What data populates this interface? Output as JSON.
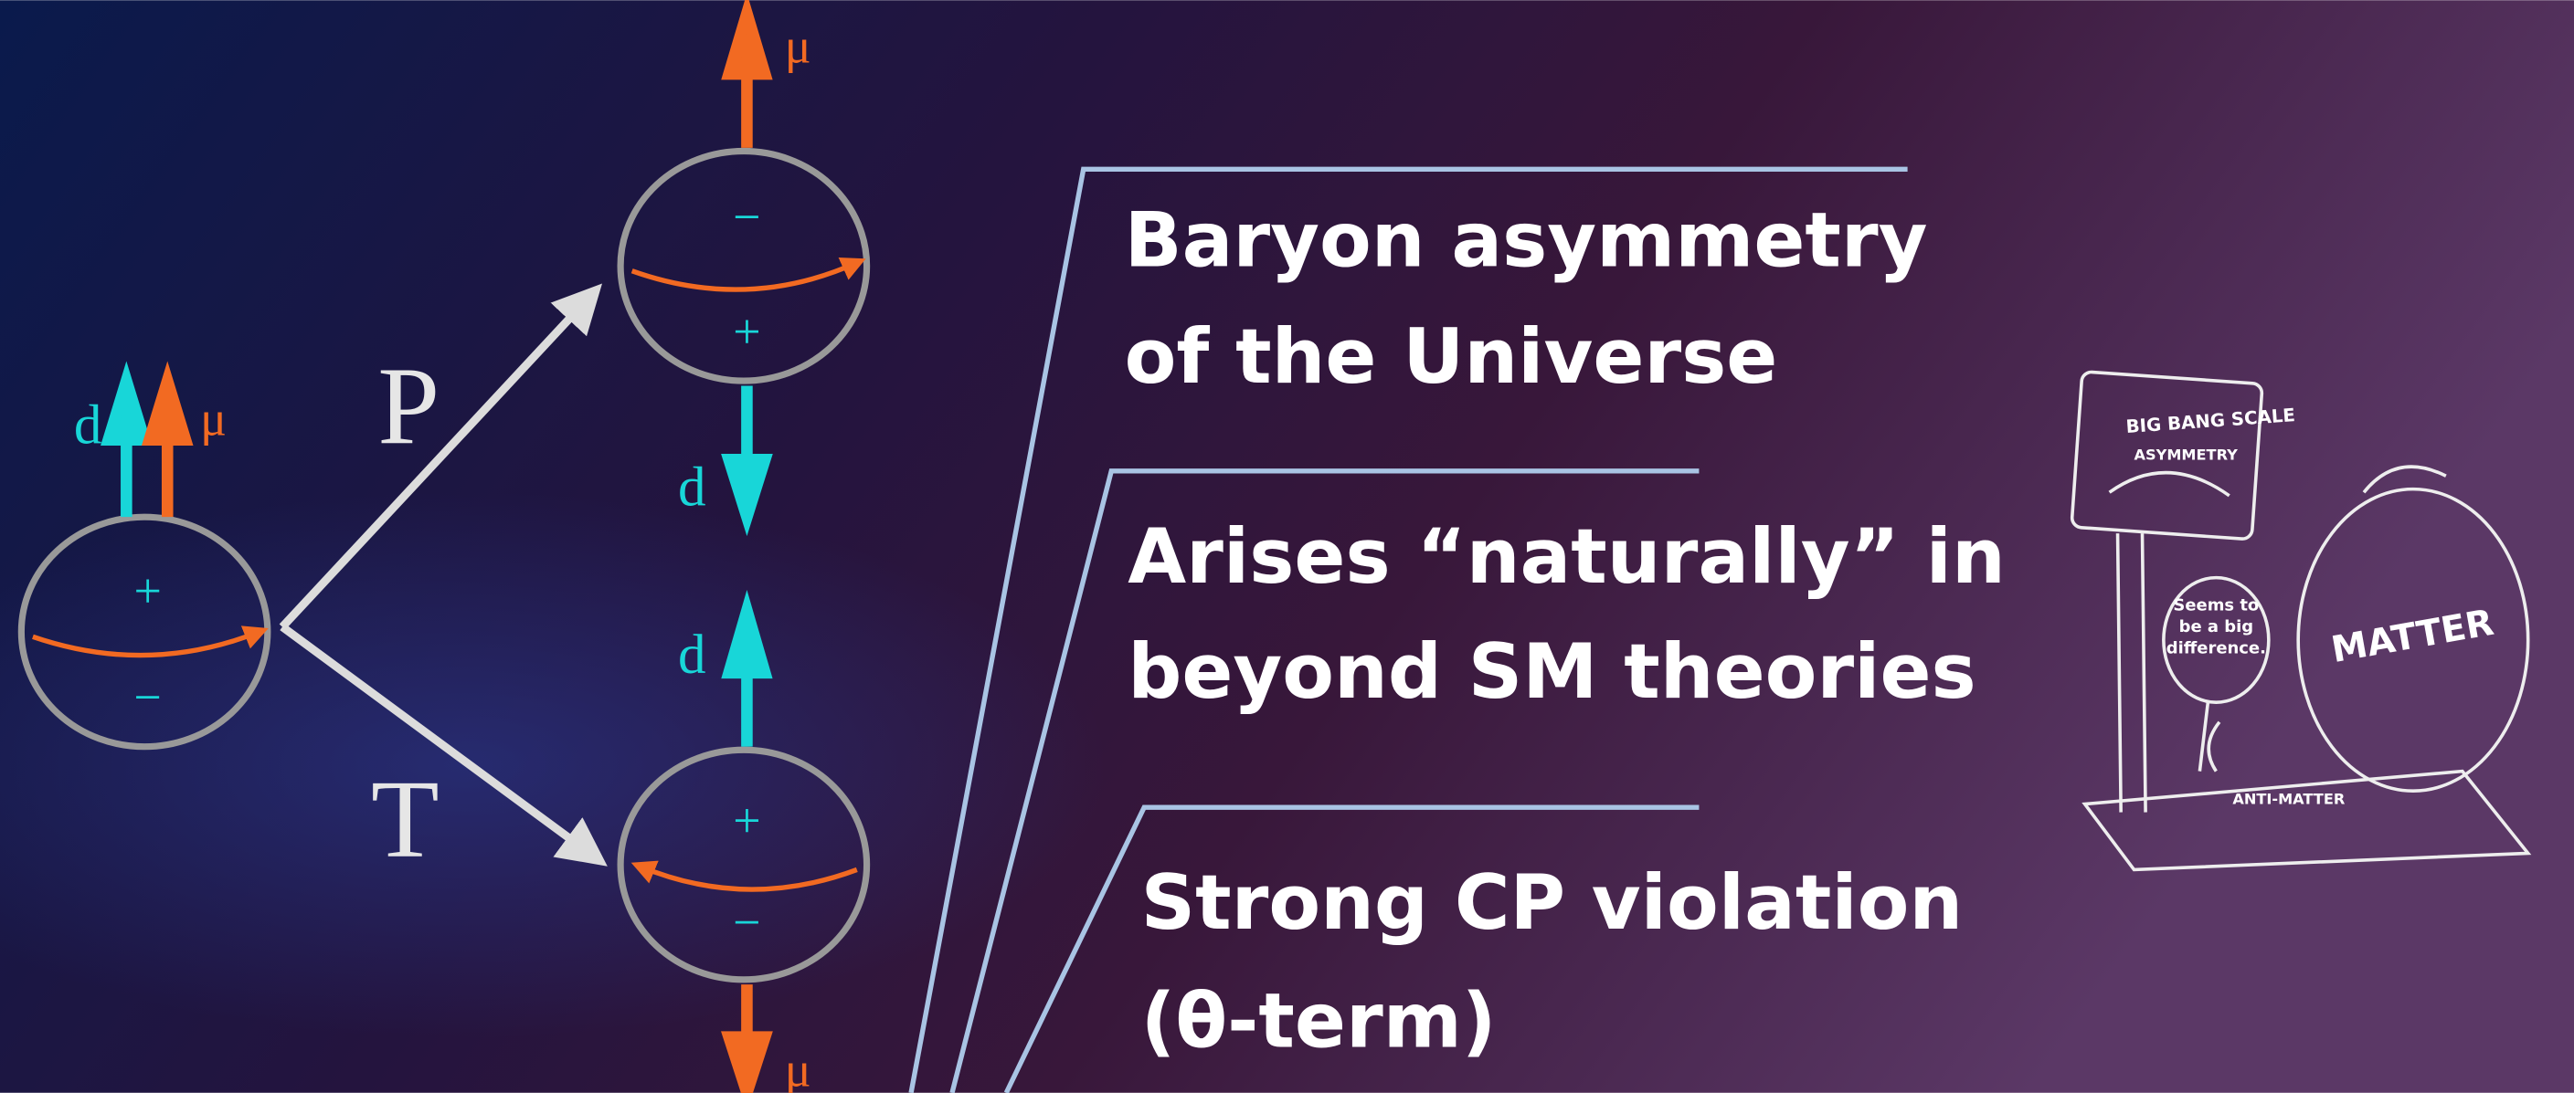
{
  "diagram": {
    "labels": {
      "p": "P",
      "t": "T",
      "d": "d",
      "mu": "μ",
      "plus": "+",
      "minus": "−"
    },
    "bullets": [
      {
        "lines": [
          "Baryon asymmetry",
          "of the Universe"
        ]
      },
      {
        "lines": [
          "Arises “naturally” in",
          "beyond SM theories"
        ]
      },
      {
        "lines": [
          "Strong CP violation",
          "(θ-term)"
        ]
      }
    ],
    "cartoon": {
      "scale": "BIG BANG SCALE",
      "dial": "ASYMMETRY",
      "bubble": [
        "Seems to",
        "be a big",
        "difference."
      ],
      "matter": "MATTER",
      "antimatter": "ANTI-MATTER"
    }
  }
}
